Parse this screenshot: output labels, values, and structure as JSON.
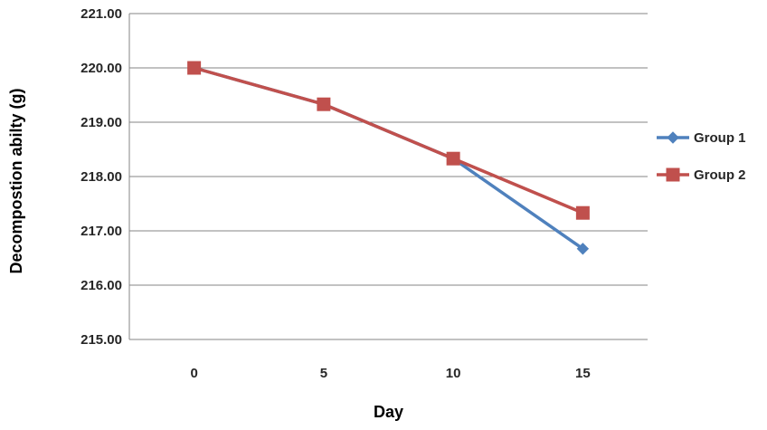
{
  "chart_data": {
    "type": "line",
    "categories": [
      "0",
      "5",
      "10",
      "15"
    ],
    "xlabel": "Day",
    "ylabel": "Decompostion abilty (g)",
    "ylim": [
      215,
      221
    ],
    "yticks": [
      "215.00",
      "216.00",
      "217.00",
      "218.00",
      "219.00",
      "220.00",
      "221.00"
    ],
    "grid": true,
    "legend_position": "right",
    "series": [
      {
        "name": "Group 1",
        "values": [
          220.0,
          219.33,
          218.33,
          216.67
        ],
        "color": "#4F81BD",
        "marker": "diamond"
      },
      {
        "name": "Group 2",
        "values": [
          220.0,
          219.33,
          218.33,
          217.33
        ],
        "color": "#C0504D",
        "marker": "square"
      }
    ]
  }
}
